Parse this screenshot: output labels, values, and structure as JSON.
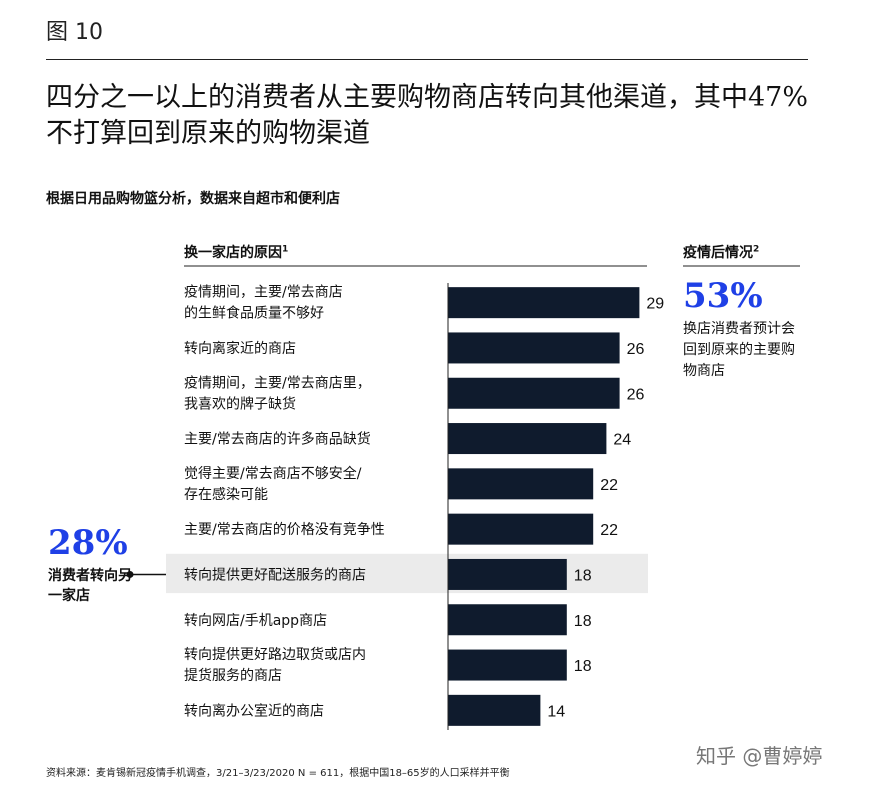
{
  "figure_label": "图 10",
  "headline": "四分之一以上的消费者从主要购物商店转向其他渠道，其中47%不打算回到原来的购物渠道",
  "subtitle": "根据日用品购物篮分析，数据来自超市和便利店",
  "left_header": {
    "text": "换一家店的原因",
    "sup": "1"
  },
  "right_header": {
    "text": "疫情后情况",
    "sup": "2"
  },
  "stat_right": {
    "value": "53%",
    "note": "换店消费者预计会回到原来的主要购物商店"
  },
  "stat_left": {
    "value": "28%",
    "note": "消费者转向另一家店"
  },
  "source": "资料来源：麦肯锡新冠疫情手机调查，3/21–3/23/2020 N = 611，根据中国18–65岁的人口采样并平衡",
  "watermark": "知乎 @曹婷婷",
  "colors": {
    "bar": "#0f1b2d",
    "accent": "#1f40e6",
    "highlight": "#ebebeb"
  },
  "chart_data": {
    "type": "bar",
    "orientation": "horizontal",
    "categories": [
      [
        "疫情期间，主要/常去商店",
        "的生鲜食品质量不够好"
      ],
      [
        "转向离家近的商店"
      ],
      [
        "疫情期间，主要/常去商店里，",
        "我喜欢的牌子缺货"
      ],
      [
        "主要/常去商店的许多商品缺货"
      ],
      [
        "觉得主要/常去商店不够安全/",
        "存在感染可能"
      ],
      [
        "主要/常去商店的价格没有竞争性"
      ],
      [
        "转向提供更好配送服务的商店"
      ],
      [
        "转向网店/手机app商店"
      ],
      [
        "转向提供更好路边取货或店内",
        "提货服务的商店"
      ],
      [
        "转向离办公室近的商店"
      ]
    ],
    "values": [
      29,
      26,
      26,
      24,
      22,
      22,
      18,
      18,
      18,
      14
    ],
    "highlight_index": 6,
    "xlim": [
      0,
      30
    ]
  }
}
